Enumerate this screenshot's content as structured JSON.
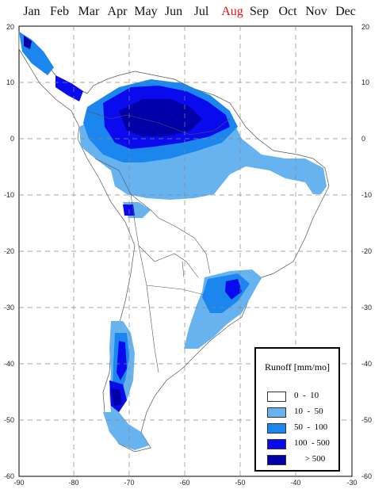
{
  "months": [
    {
      "label": "Jan",
      "active": false
    },
    {
      "label": "Feb",
      "active": false
    },
    {
      "label": "Mar",
      "active": false
    },
    {
      "label": "Apr",
      "active": false
    },
    {
      "label": "May",
      "active": false
    },
    {
      "label": "Jun",
      "active": false
    },
    {
      "label": "Jul",
      "active": false
    },
    {
      "label": "Aug",
      "active": true
    },
    {
      "label": "Sep",
      "active": false
    },
    {
      "label": "Oct",
      "active": false
    },
    {
      "label": "Nov",
      "active": false
    },
    {
      "label": "Dec",
      "active": false
    }
  ],
  "map": {
    "lon_range": [
      -90,
      -30
    ],
    "lat_range": [
      -60,
      20
    ],
    "lon_ticks": [
      "-90",
      "-80",
      "-70",
      "-60",
      "-50",
      "-40",
      "-30"
    ],
    "lat_ticks": [
      "20",
      "10",
      "0",
      "-10",
      "-20",
      "-30",
      "-40",
      "-50",
      "-60"
    ],
    "grid": true
  },
  "legend": {
    "title": "Runoff [mm/mo]",
    "items": [
      {
        "label": "0  -  10",
        "color": "#ffffff"
      },
      {
        "label": "10  -  50",
        "color": "#66b3f0"
      },
      {
        "label": "50  -  100",
        "color": "#1a86ee"
      },
      {
        "label": "100  - 500",
        "color": "#0a0aee"
      },
      {
        "label": "     > 500",
        "color": "#0000a8"
      }
    ]
  }
}
